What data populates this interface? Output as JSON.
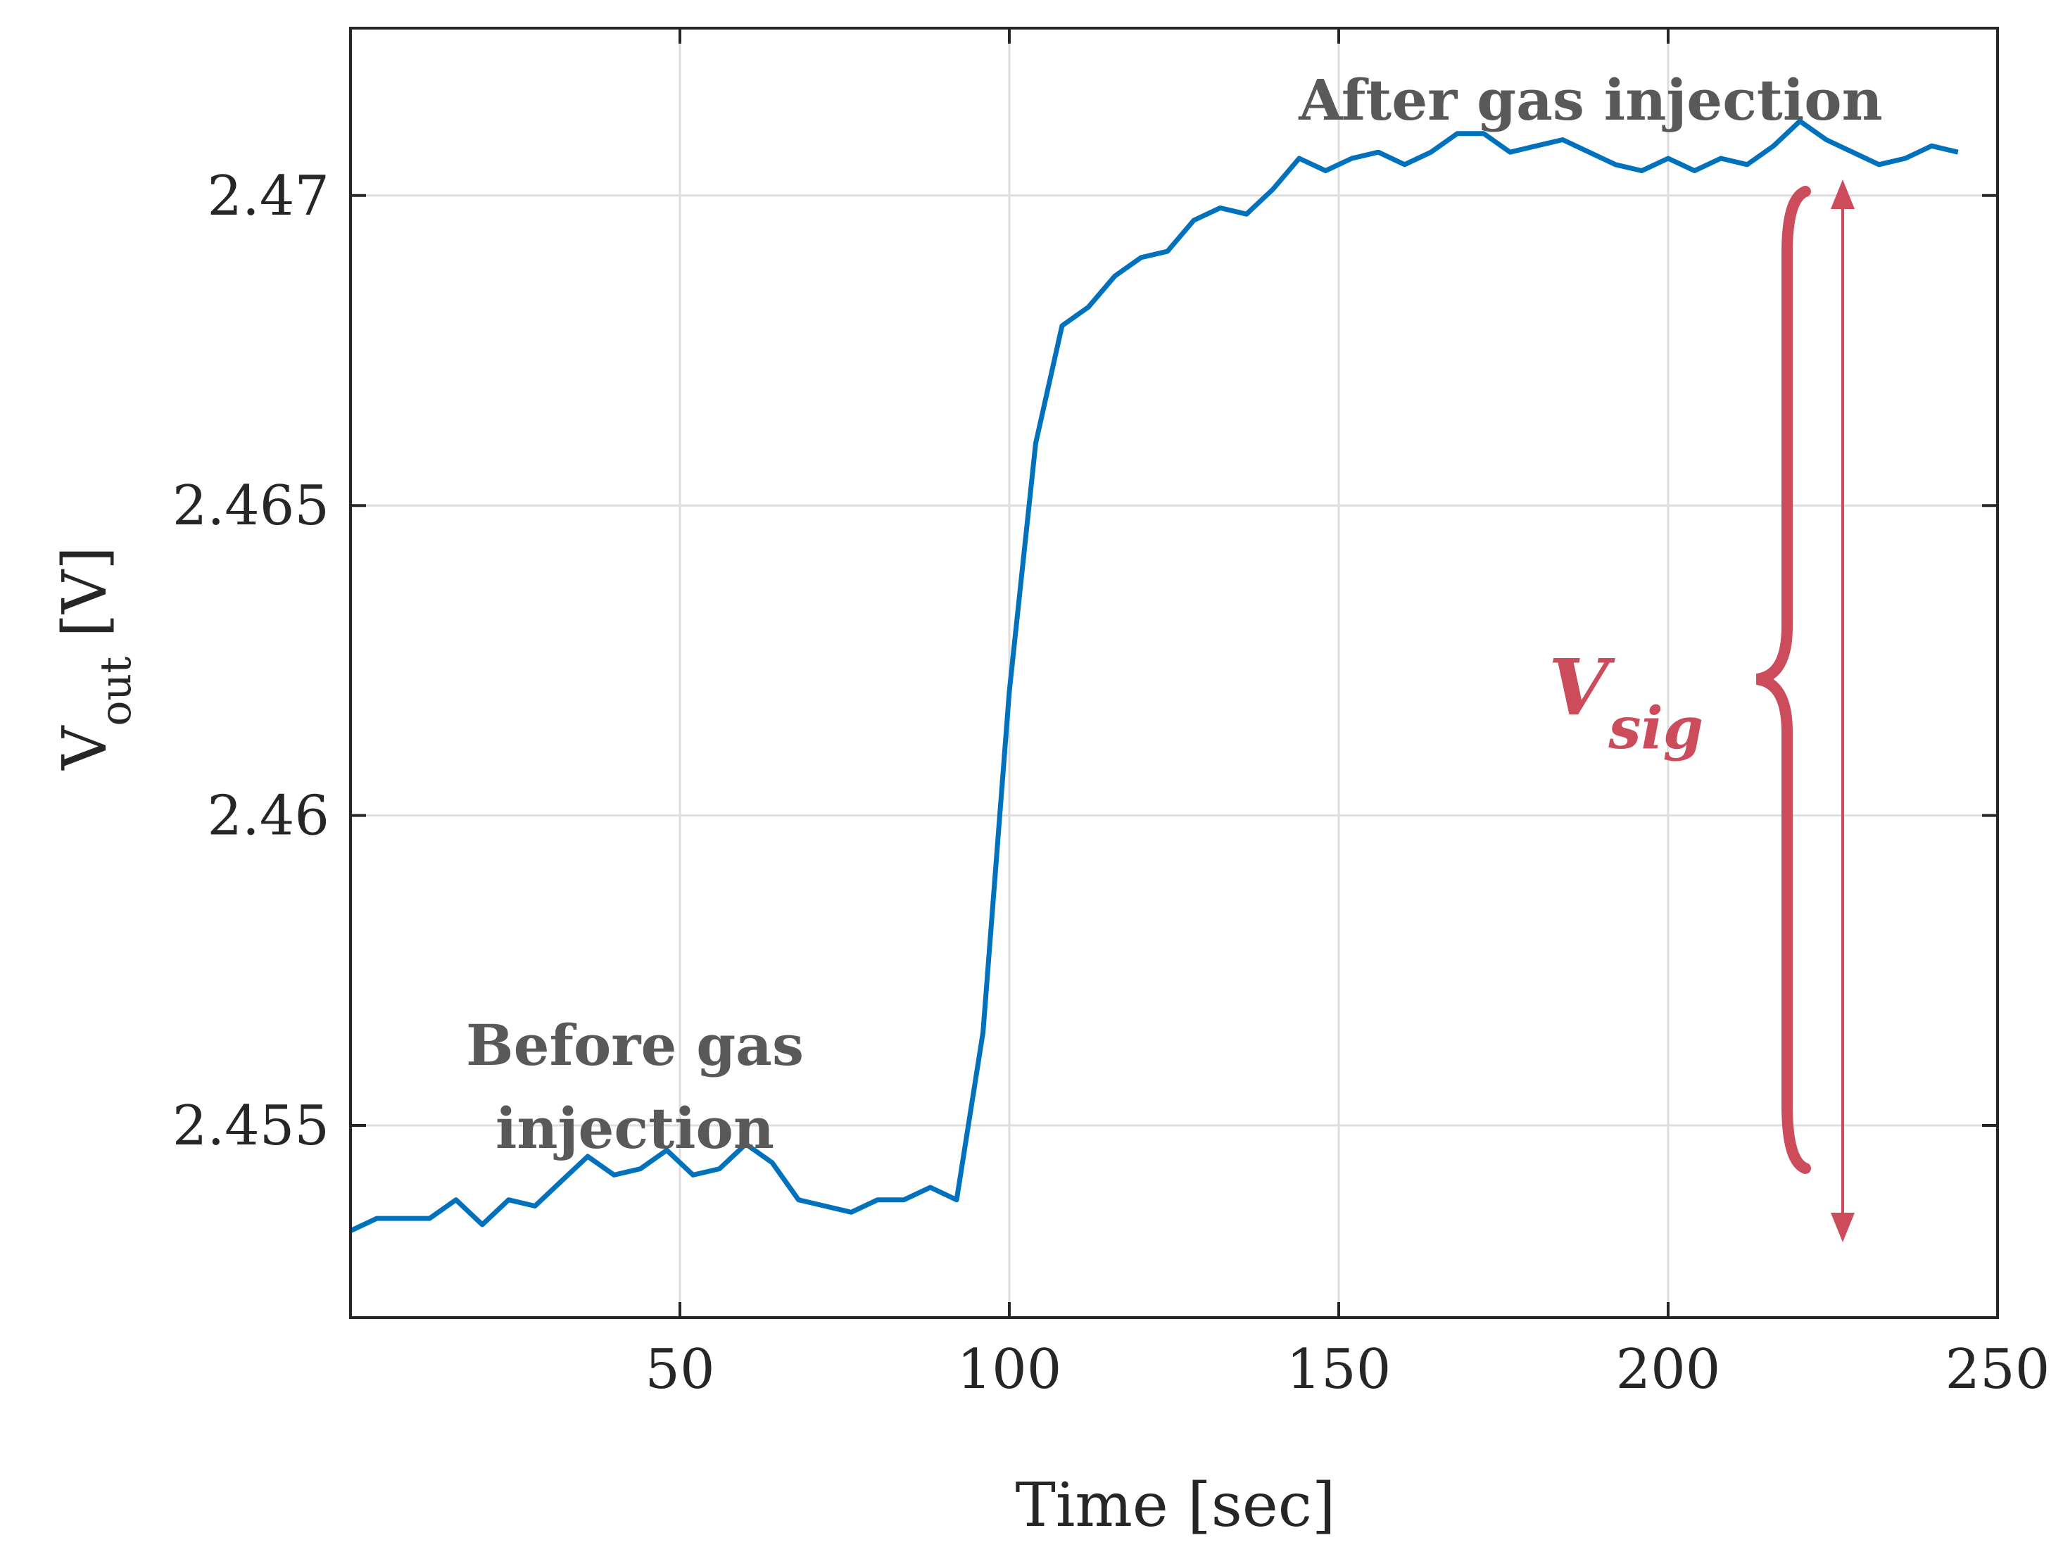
{
  "chart_data": {
    "type": "line",
    "title": "",
    "xlabel": "Time [sec]",
    "ylabel_main": "V",
    "ylabel_sub": "out",
    "ylabel_unit": " [V]",
    "xlim": [
      0,
      250
    ],
    "ylim": [
      2.4519,
      2.4727
    ],
    "xticks": [
      50,
      100,
      150,
      200,
      250
    ],
    "xtick_labels": [
      "50",
      "100",
      "150",
      "200",
      "250"
    ],
    "yticks": [
      2.455,
      2.46,
      2.465,
      2.47
    ],
    "ytick_labels": [
      "2.455",
      "2.46",
      "2.465",
      "2.47"
    ],
    "grid": true,
    "colors": {
      "line": "#0072bd",
      "annotation": "#cc4c5c",
      "label": "#595959"
    },
    "series": [
      {
        "name": "Vout",
        "x": [
          0,
          4,
          8,
          12,
          16,
          20,
          24,
          28,
          32,
          36,
          40,
          44,
          48,
          52,
          56,
          60,
          64,
          68,
          72,
          76,
          80,
          84,
          88,
          92,
          96,
          100,
          104,
          108,
          112,
          116,
          120,
          124,
          128,
          132,
          136,
          140,
          144,
          148,
          152,
          156,
          160,
          164,
          168,
          172,
          176,
          180,
          184,
          188,
          192,
          196,
          200,
          204,
          208,
          212,
          216,
          220,
          224,
          228,
          232,
          236,
          240,
          244
        ],
        "values": [
          2.4533,
          2.4535,
          2.4535,
          2.4535,
          2.4538,
          2.4534,
          2.4538,
          2.4537,
          2.4541,
          2.4545,
          2.4542,
          2.4543,
          2.4546,
          2.4542,
          2.4543,
          2.4547,
          2.4544,
          2.4538,
          2.4537,
          2.4536,
          2.4538,
          2.4538,
          2.454,
          2.4538,
          2.4565,
          2.462,
          2.466,
          2.4679,
          2.4682,
          2.4687,
          2.469,
          2.4691,
          2.4696,
          2.4698,
          2.4697,
          2.4701,
          2.4706,
          2.4704,
          2.4706,
          2.4707,
          2.4705,
          2.4707,
          2.471,
          2.471,
          2.4707,
          2.4708,
          2.4709,
          2.4707,
          2.4705,
          2.4704,
          2.4706,
          2.4704,
          2.4706,
          2.4705,
          2.4708,
          2.4712,
          2.4709,
          2.4707,
          2.4705,
          2.4706,
          2.4708,
          2.4707
        ]
      }
    ],
    "annotations": {
      "before_line1": "Before gas",
      "before_line2": "injection",
      "after": "After gas injection",
      "vsig_main": "V",
      "vsig_sub": "sig"
    }
  }
}
